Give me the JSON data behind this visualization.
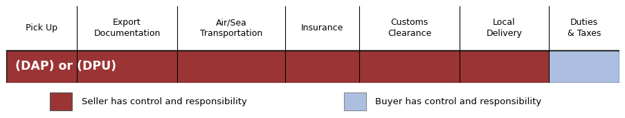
{
  "columns": [
    "Pick Up",
    "Export\nDocumentation",
    "Air/Sea\nTransportation",
    "Insurance",
    "Customs\nClearance",
    "Local\nDelivery",
    "Duties\n& Taxes"
  ],
  "col_widths": [
    0.95,
    1.35,
    1.45,
    1.0,
    1.35,
    1.2,
    0.95
  ],
  "seller_color": "#9B3535",
  "buyer_color": "#ADBFE0",
  "bar_label": "(DAP) or (DPU)",
  "seller_cols": [
    0,
    1,
    2,
    3,
    4,
    5
  ],
  "buyer_cols": [
    6
  ],
  "legend_seller": "Seller has control and responsibility",
  "legend_buyer": "Buyer has control and responsibility",
  "background_color": "#FFFFFF",
  "header_fontsize": 9.0,
  "bar_label_fontsize": 12.5,
  "legend_fontsize": 9.5
}
